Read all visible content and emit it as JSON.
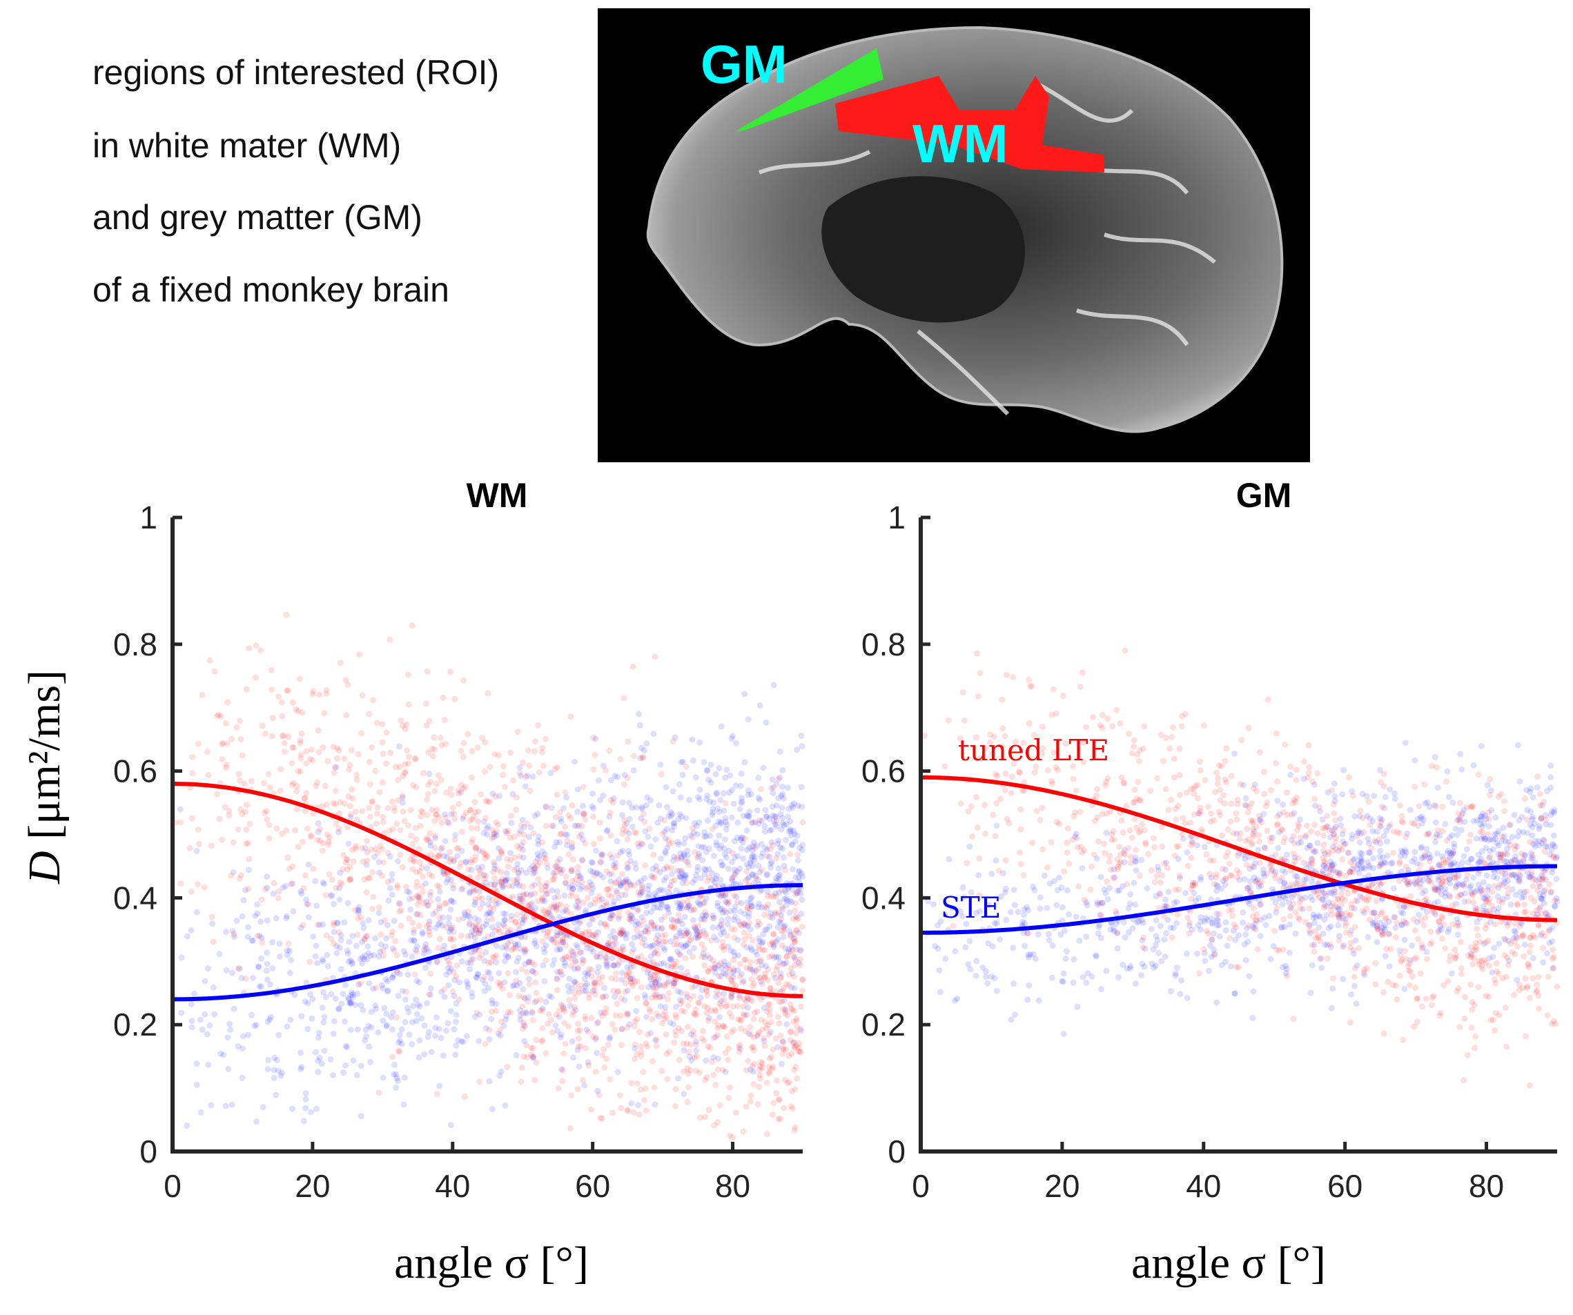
{
  "description_lines": [
    "regions of interested (ROI)",
    "in white mater (WM)",
    "and grey matter (GM)",
    "of a fixed monkey brain"
  ],
  "brain_image": {
    "labels": {
      "gm": "GM",
      "wm": "WM"
    },
    "colors": {
      "gm_roi": "#33ee33",
      "wm_roi": "#ff1a1a",
      "label": "#00ffff"
    }
  },
  "chart_data": [
    {
      "type": "scatter",
      "title": "WM",
      "xlabel": "angle σ [°]",
      "ylabel_italic": "D",
      "ylabel": "[μm²/ms]",
      "xlim": [
        0,
        90
      ],
      "ylim": [
        0,
        1
      ],
      "xticks": [
        "0",
        "20",
        "40",
        "60",
        "80"
      ],
      "yticks": [
        "0",
        "0.2",
        "0.4",
        "0.6",
        "0.8",
        "1"
      ],
      "series": [
        {
          "name": "tuned LTE",
          "color": "#ff0000",
          "fit": {
            "at_0": 0.58,
            "at_90": 0.245
          },
          "spread": 0.13
        },
        {
          "name": "STE",
          "color": "#0000ff",
          "fit": {
            "at_0": 0.24,
            "at_90": 0.42
          },
          "spread": 0.11
        }
      ]
    },
    {
      "type": "scatter",
      "title": "GM",
      "xlabel": "angle σ [°]",
      "xlim": [
        0,
        90
      ],
      "ylim": [
        0,
        1
      ],
      "xticks": [
        "0",
        "20",
        "40",
        "60",
        "80"
      ],
      "yticks": [
        "0",
        "0.2",
        "0.4",
        "0.6",
        "0.8",
        "1"
      ],
      "annotations": {
        "lte": "tuned LTE",
        "ste": "STE"
      },
      "series": [
        {
          "name": "tuned LTE",
          "color": "#ff0000",
          "fit": {
            "at_0": 0.59,
            "at_90": 0.365
          },
          "spread": 0.09
        },
        {
          "name": "STE",
          "color": "#0000ff",
          "fit": {
            "at_0": 0.345,
            "at_90": 0.45
          },
          "spread": 0.07
        }
      ]
    }
  ]
}
